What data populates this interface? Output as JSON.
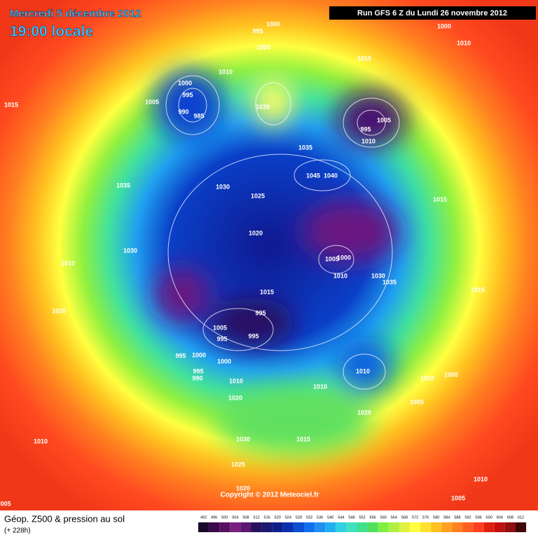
{
  "header": {
    "date": "Mercredi 5 décembre 2012",
    "time": "19:00 locale",
    "run": "Run GFS 6 Z du Lundi 26 novembre 2012"
  },
  "pressure_labels": [
    "1000",
    "995",
    "1000",
    "1010",
    "1005",
    "1010",
    "1010",
    "1000",
    "995",
    "1005",
    "990",
    "985",
    "1030",
    "1015",
    "995",
    "1005",
    "1010",
    "1035",
    "1045",
    "1040",
    "1035",
    "1030",
    "1025",
    "1015",
    "1020",
    "1030",
    "1010",
    "1005",
    "1000",
    "1010",
    "1030",
    "1035",
    "1015",
    "1015",
    "995",
    "1020",
    "1005",
    "995",
    "995",
    "995",
    "1000",
    "1000",
    "995",
    "990",
    "1010",
    "1010",
    "1010",
    "1005",
    "1010",
    "1020",
    "1005",
    "1020",
    "1030",
    "1015",
    "1010",
    "1025",
    "1010",
    "1020",
    "1005",
    "005"
  ],
  "copyright": "Copyright © 2012 Meteociel.fr",
  "legend": {
    "title": "Géop. Z500 & pression au sol",
    "lead": "(+ 228h)",
    "scale": [
      492,
      496,
      500,
      504,
      508,
      512,
      516,
      520,
      524,
      528,
      532,
      536,
      540,
      544,
      548,
      552,
      556,
      560,
      564,
      568,
      572,
      576,
      580,
      584,
      588,
      592,
      596,
      600,
      604,
      608,
      612
    ],
    "colors": [
      "#1a0a2a",
      "#3a0a4a",
      "#5a1060",
      "#7a2080",
      "#5a1870",
      "#2a1060",
      "#1a1a70",
      "#10208a",
      "#0a30b0",
      "#0a50d0",
      "#1070f0",
      "#2090f0",
      "#20b0f0",
      "#30d0e0",
      "#40e0c0",
      "#40e090",
      "#50e060",
      "#80f040",
      "#b0f040",
      "#e0f040",
      "#ffff40",
      "#ffe030",
      "#ffc020",
      "#ffa020",
      "#ff8020",
      "#ff6020",
      "#ff4020",
      "#e02010",
      "#c01010",
      "#901010",
      "#400808"
    ]
  }
}
